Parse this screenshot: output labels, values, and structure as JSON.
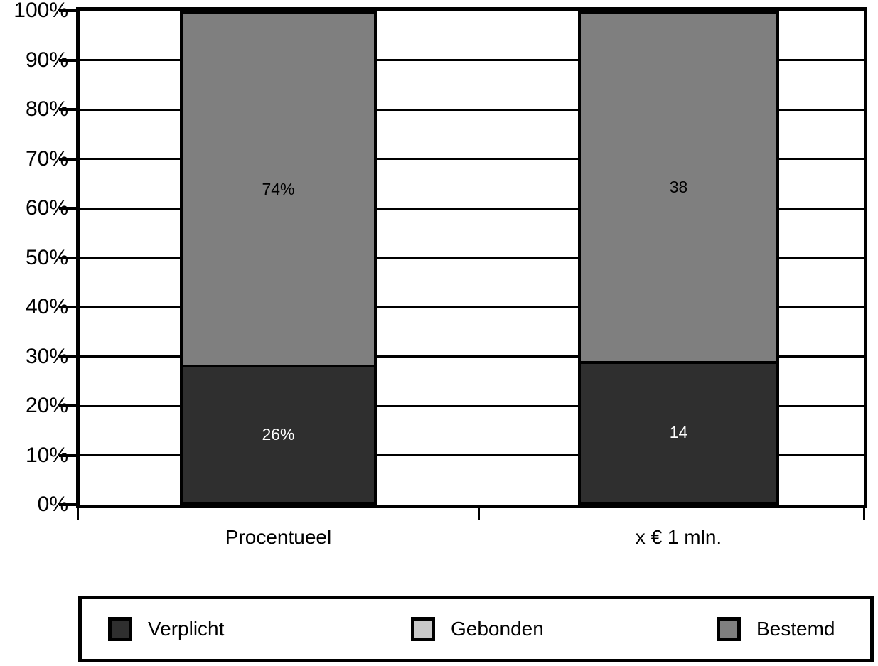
{
  "chart_data": {
    "type": "bar",
    "stacked": true,
    "title": "",
    "categories": [
      "Procentueel",
      "x € 1 mln."
    ],
    "series": [
      {
        "name": "Verplicht",
        "color": "#2f2f2f",
        "label_color": "#ffffff",
        "values": [
          26,
          14
        ],
        "data_labels": [
          "26%",
          "14"
        ]
      },
      {
        "name": "Gebonden",
        "color": "#c9c9c9",
        "label_color": "#000000",
        "values": [
          0,
          0
        ],
        "data_labels": [
          "",
          ""
        ]
      },
      {
        "name": "Bestemd",
        "color": "#7f7f7f",
        "label_color": "#000000",
        "values": [
          74,
          38
        ],
        "data_labels": [
          "74%",
          "38"
        ]
      }
    ],
    "y_axis": {
      "min": 0,
      "max": 100,
      "ticks": [
        {
          "value": 0,
          "label": "0%"
        },
        {
          "value": 10,
          "label": "10%"
        },
        {
          "value": 20,
          "label": "20%"
        },
        {
          "value": 30,
          "label": "30%"
        },
        {
          "value": 40,
          "label": "40%"
        },
        {
          "value": 50,
          "label": "50%"
        },
        {
          "value": 60,
          "label": "60%"
        },
        {
          "value": 70,
          "label": "70%"
        },
        {
          "value": 80,
          "label": "80%"
        },
        {
          "value": 90,
          "label": "90%"
        },
        {
          "value": 100,
          "label": "100%"
        }
      ]
    },
    "grid": true,
    "legend": {
      "position": "bottom",
      "entries": [
        "Verplicht",
        "Gebonden",
        "Bestemd"
      ]
    }
  }
}
